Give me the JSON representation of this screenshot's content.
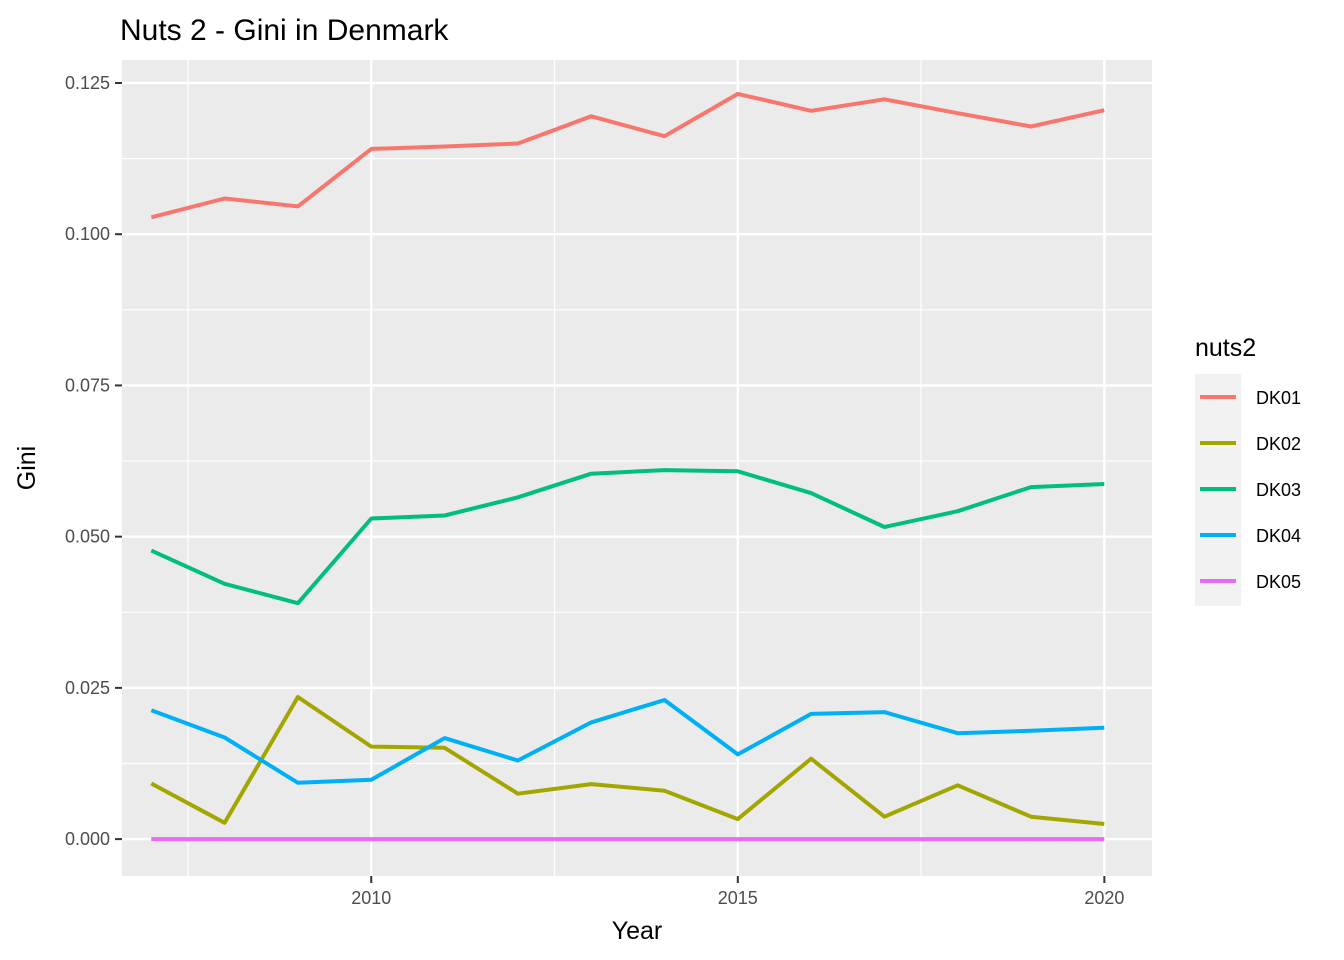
{
  "chart_data": {
    "type": "line",
    "title": "Nuts 2 - Gini in Denmark",
    "xlabel": "Year",
    "ylabel": "Gini",
    "xlim": [
      2006.6,
      2020.65
    ],
    "ylim": [
      -0.0061,
      0.1288
    ],
    "xticks": [
      2010,
      2015,
      2020
    ],
    "xtick_labels": [
      "2010",
      "2015",
      "2020"
    ],
    "xminor": [
      2007.5,
      2012.5,
      2017.5
    ],
    "yticks": [
      0.0,
      0.025,
      0.05,
      0.075,
      0.1,
      0.125
    ],
    "ytick_labels": [
      "0.000",
      "0.025",
      "0.050",
      "0.075",
      "0.100",
      "0.125"
    ],
    "yminor": [
      0.0125,
      0.0375,
      0.0625,
      0.0875,
      0.1125
    ],
    "grid": true,
    "legend": {
      "title": "nuts2",
      "position": "right"
    },
    "x": [
      2007,
      2008,
      2009,
      2010,
      2011,
      2012,
      2013,
      2014,
      2015,
      2016,
      2017,
      2018,
      2019,
      2020
    ],
    "series": [
      {
        "name": "DK01",
        "color": "#F8766D",
        "values": [
          0.1028,
          0.1059,
          0.1046,
          0.1141,
          0.1145,
          0.115,
          0.1195,
          0.1162,
          0.1232,
          0.1204,
          0.1223,
          0.12,
          0.1178,
          0.1205
        ]
      },
      {
        "name": "DK02",
        "color": "#A3A500",
        "values": [
          0.0092,
          0.0027,
          0.0235,
          0.0153,
          0.0151,
          0.0075,
          0.0091,
          0.008,
          0.0033,
          0.0133,
          0.0037,
          0.0089,
          0.0037,
          0.0025
        ]
      },
      {
        "name": "DK03",
        "color": "#00BF7D",
        "values": [
          0.0477,
          0.0422,
          0.039,
          0.053,
          0.0535,
          0.0565,
          0.0604,
          0.061,
          0.0608,
          0.0572,
          0.0516,
          0.0542,
          0.0582,
          0.0587
        ]
      },
      {
        "name": "DK04",
        "color": "#00B0F6",
        "values": [
          0.0213,
          0.0168,
          0.0093,
          0.0098,
          0.0167,
          0.013,
          0.0193,
          0.023,
          0.014,
          0.0207,
          0.021,
          0.0175,
          0.0179,
          0.0184
        ]
      },
      {
        "name": "DK05",
        "color": "#E76BF3",
        "values": [
          0.0,
          0.0,
          0.0,
          0.0,
          0.0,
          0.0,
          0.0,
          0.0,
          0.0,
          0.0,
          0.0,
          0.0,
          0.0,
          0.0
        ]
      }
    ]
  }
}
